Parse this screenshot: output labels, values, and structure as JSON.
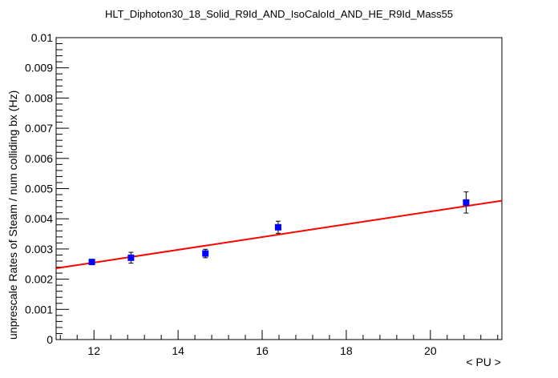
{
  "chart_data": {
    "type": "scatter",
    "title": "HLT_Diphoton30_18_Solid_R9Id_AND_IsoCaloId_AND_HE_R9Id_Mass55",
    "xlabel": "< PU >",
    "ylabel": "unprescale Rates of Steam / num colliding bx (Hz)",
    "xlim": [
      11.1,
      21.7
    ],
    "ylim": [
      0,
      0.01
    ],
    "x_ticks": [
      "12",
      "14",
      "16",
      "18",
      "20"
    ],
    "y_ticks": [
      "0",
      "0.001",
      "0.002",
      "0.003",
      "0.004",
      "0.005",
      "0.006",
      "0.007",
      "0.008",
      "0.009",
      "0.01"
    ],
    "grid": false,
    "series": [
      {
        "marker": "square",
        "color": "#0000ff",
        "points": [
          {
            "x": 11.95,
            "y": 0.00257,
            "yerr": 8e-05
          },
          {
            "x": 12.88,
            "y": 0.00271,
            "yerr": 0.00018
          },
          {
            "x": 14.65,
            "y": 0.00285,
            "yerr": 0.00014
          },
          {
            "x": 16.38,
            "y": 0.00372,
            "yerr": 0.0002
          },
          {
            "x": 20.85,
            "y": 0.00454,
            "yerr": 0.00035
          }
        ]
      }
    ],
    "fit": {
      "type": "linear",
      "color": "#ff0000",
      "x_range": [
        11.1,
        21.7
      ],
      "y_at_start": 0.00236,
      "y_at_end": 0.0046
    }
  }
}
